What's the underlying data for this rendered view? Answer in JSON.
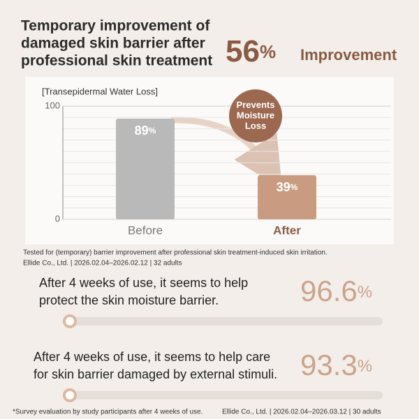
{
  "header": {
    "title_lines": [
      "Temporary improvement of",
      "damaged skin barrier after",
      "professional skin treatment"
    ],
    "stat": "56%",
    "stat_label": "Improvement"
  },
  "chart_data": {
    "type": "bar",
    "title": "[Transepidermal Water Loss]",
    "categories": [
      "Before",
      "After"
    ],
    "values": [
      89,
      39
    ],
    "value_labels": [
      "89%",
      "39%"
    ],
    "colors": [
      "#b9b9b9",
      "#c99c82"
    ],
    "ylim": [
      0,
      100
    ],
    "yticks": [
      0,
      100
    ],
    "grid": true,
    "annotation": [
      "Prevents",
      "Moisture",
      "Loss"
    ]
  },
  "notes": [
    "Tested for (temporary) barrier improvement after professional skin treatment-induced skin irritation.",
    "Ellide Co., Ltd. | 2026.02.04–2026.02.12 | 32 adults"
  ],
  "surveys": [
    {
      "lines": [
        "After 4 weeks of use, it seems to help",
        "protect the skin moisture barrier."
      ],
      "result": "96.6%"
    },
    {
      "lines": [
        "After 4 weeks of use, it seems to help care",
        "for skin barrier damaged by external stimuli."
      ],
      "result": "93.3%"
    }
  ],
  "footer": [
    "*Survey evaluation by study participants after 4 weeks of use.",
    "Ellide Co., Ltd. | 2026.02.04–2026.03.12 | 30 adults"
  ]
}
